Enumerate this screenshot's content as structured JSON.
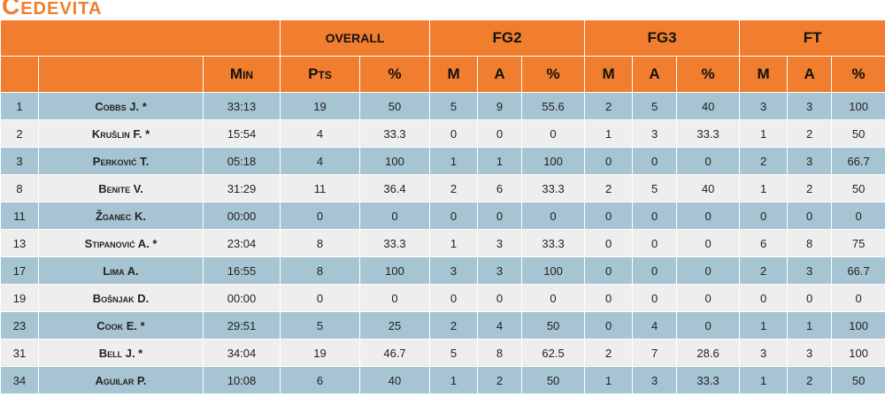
{
  "team": {
    "name": "Cedevita"
  },
  "header": {
    "groups": [
      "OVERALL",
      "FG2",
      "FG3",
      "FT"
    ],
    "columns": [
      "Min",
      "Pts",
      "%",
      "M",
      "A",
      "%",
      "M",
      "A",
      "%",
      "M",
      "A",
      "%"
    ]
  },
  "rows": [
    {
      "no": "1",
      "name": "Cobbs J. *",
      "min": "33:13",
      "pts": "19",
      "pct": "50",
      "fg2m": "5",
      "fg2a": "9",
      "fg2p": "55.6",
      "fg3m": "2",
      "fg3a": "5",
      "fg3p": "40",
      "ftm": "3",
      "fta": "3",
      "ftp": "100"
    },
    {
      "no": "2",
      "name": "Krušlin F. *",
      "min": "15:54",
      "pts": "4",
      "pct": "33.3",
      "fg2m": "0",
      "fg2a": "0",
      "fg2p": "0",
      "fg3m": "1",
      "fg3a": "3",
      "fg3p": "33.3",
      "ftm": "1",
      "fta": "2",
      "ftp": "50"
    },
    {
      "no": "3",
      "name": "Perković T.",
      "min": "05:18",
      "pts": "4",
      "pct": "100",
      "fg2m": "1",
      "fg2a": "1",
      "fg2p": "100",
      "fg3m": "0",
      "fg3a": "0",
      "fg3p": "0",
      "ftm": "2",
      "fta": "3",
      "ftp": "66.7"
    },
    {
      "no": "8",
      "name": "Benite V.",
      "min": "31:29",
      "pts": "11",
      "pct": "36.4",
      "fg2m": "2",
      "fg2a": "6",
      "fg2p": "33.3",
      "fg3m": "2",
      "fg3a": "5",
      "fg3p": "40",
      "ftm": "1",
      "fta": "2",
      "ftp": "50"
    },
    {
      "no": "11",
      "name": "Žganec K.",
      "min": "00:00",
      "pts": "0",
      "pct": "0",
      "fg2m": "0",
      "fg2a": "0",
      "fg2p": "0",
      "fg3m": "0",
      "fg3a": "0",
      "fg3p": "0",
      "ftm": "0",
      "fta": "0",
      "ftp": "0"
    },
    {
      "no": "13",
      "name": "Stipanović A. *",
      "min": "23:04",
      "pts": "8",
      "pct": "33.3",
      "fg2m": "1",
      "fg2a": "3",
      "fg2p": "33.3",
      "fg3m": "0",
      "fg3a": "0",
      "fg3p": "0",
      "ftm": "6",
      "fta": "8",
      "ftp": "75"
    },
    {
      "no": "17",
      "name": "Lima A.",
      "min": "16:55",
      "pts": "8",
      "pct": "100",
      "fg2m": "3",
      "fg2a": "3",
      "fg2p": "100",
      "fg3m": "0",
      "fg3a": "0",
      "fg3p": "0",
      "ftm": "2",
      "fta": "3",
      "ftp": "66.7"
    },
    {
      "no": "19",
      "name": "Bošnjak D.",
      "min": "00:00",
      "pts": "0",
      "pct": "0",
      "fg2m": "0",
      "fg2a": "0",
      "fg2p": "0",
      "fg3m": "0",
      "fg3a": "0",
      "fg3p": "0",
      "ftm": "0",
      "fta": "0",
      "ftp": "0"
    },
    {
      "no": "23",
      "name": "Cook E. *",
      "min": "29:51",
      "pts": "5",
      "pct": "25",
      "fg2m": "2",
      "fg2a": "4",
      "fg2p": "50",
      "fg3m": "0",
      "fg3a": "4",
      "fg3p": "0",
      "ftm": "1",
      "fta": "1",
      "ftp": "100"
    },
    {
      "no": "31",
      "name": "Bell J. *",
      "min": "34:04",
      "pts": "19",
      "pct": "46.7",
      "fg2m": "5",
      "fg2a": "8",
      "fg2p": "62.5",
      "fg3m": "2",
      "fg3a": "7",
      "fg3p": "28.6",
      "ftm": "3",
      "fta": "3",
      "ftp": "100"
    },
    {
      "no": "34",
      "name": "Aguilar P.",
      "min": "10:08",
      "pts": "6",
      "pct": "40",
      "fg2m": "1",
      "fg2a": "2",
      "fg2p": "50",
      "fg3m": "1",
      "fg3a": "3",
      "fg3p": "33.3",
      "ftm": "1",
      "fta": "2",
      "ftp": "50"
    }
  ]
}
